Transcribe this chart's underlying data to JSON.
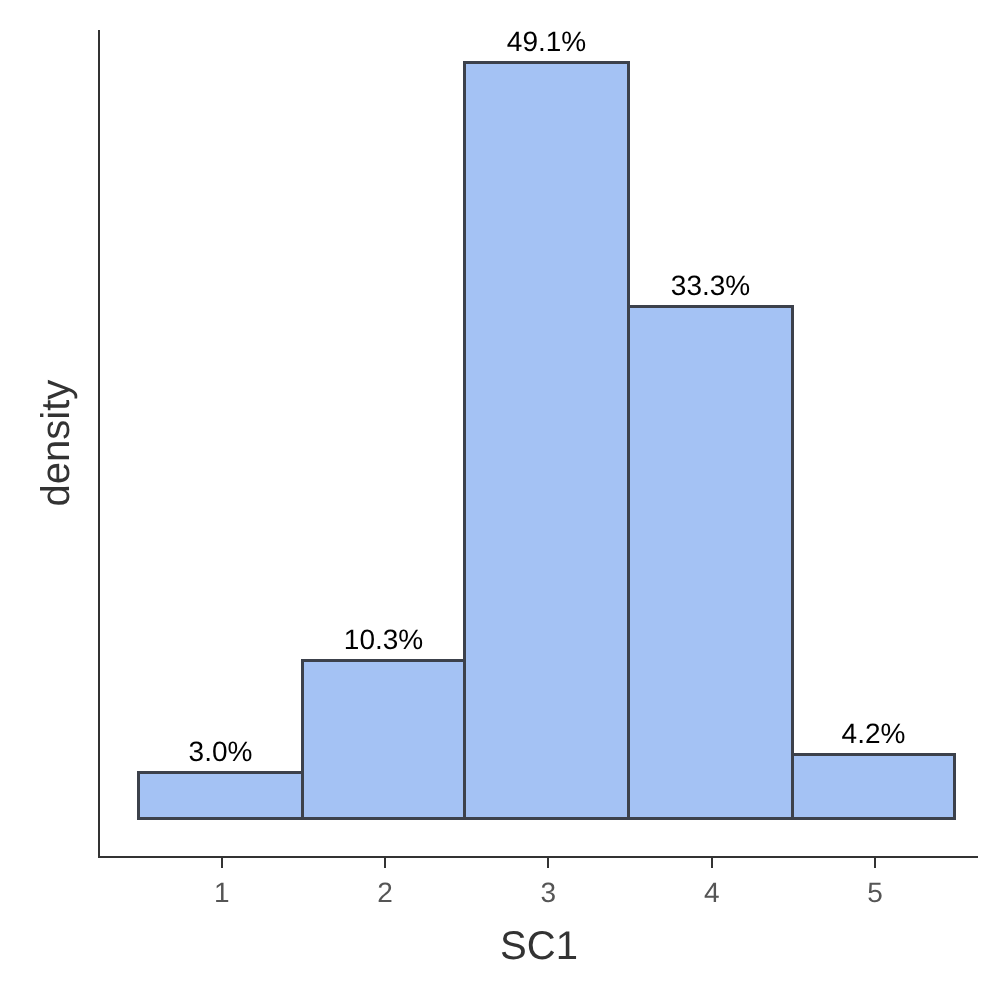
{
  "chart_data": {
    "type": "bar",
    "xlabel": "SC1",
    "ylabel": "density",
    "categories": [
      "1",
      "2",
      "3",
      "4",
      "5"
    ],
    "values": [
      3.0,
      10.3,
      49.1,
      33.3,
      4.2
    ],
    "value_labels": [
      "3.0%",
      "10.3%",
      "49.1%",
      "33.3%",
      "4.2%"
    ],
    "color": "#a4c2f4",
    "tick_labels": "x"
  }
}
